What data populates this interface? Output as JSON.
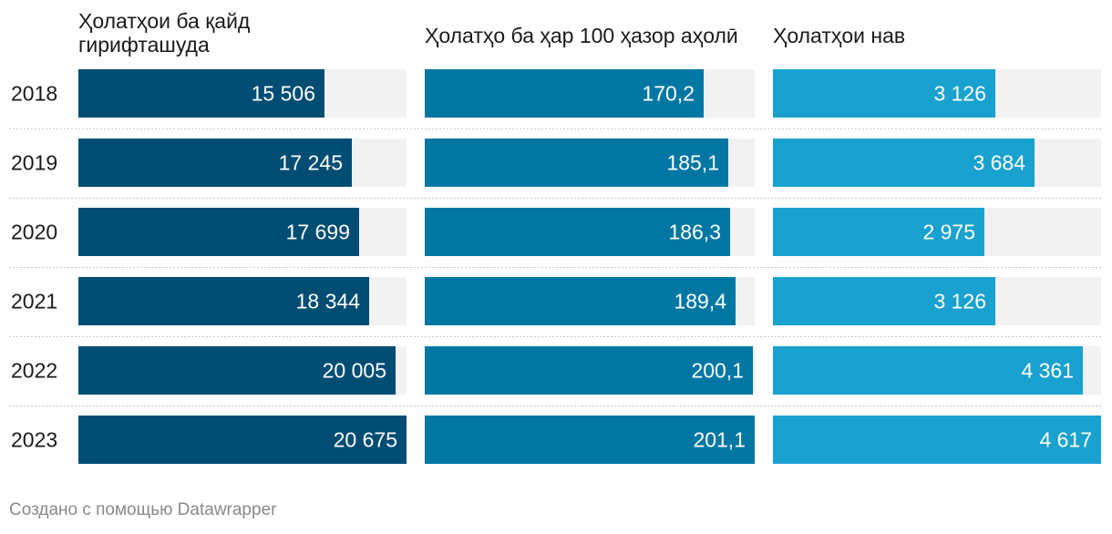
{
  "colors": {
    "background": "#f2f2f2",
    "series": [
      "#004d74",
      "#0077a3",
      "#19a1cf"
    ],
    "separator": "#c8c8c8",
    "footer": "#8a8a8a"
  },
  "chart_data": {
    "type": "bar",
    "orientation": "horizontal",
    "layout": "small-multiples",
    "categories": [
      "2018",
      "2019",
      "2020",
      "2021",
      "2022",
      "2023"
    ],
    "series": [
      {
        "name": "Ҳолатҳои ба қайд гирифташуда",
        "title_lines": [
          "Ҳолатҳои ба қайд",
          "гирифташуда"
        ],
        "values": [
          15506,
          17245,
          17699,
          18344,
          20005,
          20675
        ],
        "labels": [
          "15 506",
          "17 245",
          "17 699",
          "18 344",
          "20 005",
          "20 675"
        ]
      },
      {
        "name": "Ҳолатҳо ба ҳар 100 ҳазор аҳолӣ",
        "title_lines": [
          "Ҳолатҳо ба ҳар 100 ҳазор аҳолӣ"
        ],
        "values": [
          170.2,
          185.1,
          186.3,
          189.4,
          200.1,
          201.1
        ],
        "labels": [
          "170,2",
          "185,1",
          "186,3",
          "189,4",
          "200,1",
          "201,1"
        ]
      },
      {
        "name": "Ҳолатҳои нав",
        "title_lines": [
          "Ҳолатҳои нав"
        ],
        "values": [
          3126,
          3684,
          2975,
          3126,
          4361,
          4617
        ],
        "labels": [
          "3 126",
          "3 684",
          "2 975",
          "3 126",
          "4 361",
          "4 617"
        ]
      }
    ],
    "grid": false,
    "legend": "none"
  },
  "footer": {
    "credit": "Создано с помощью Datawrapper"
  }
}
